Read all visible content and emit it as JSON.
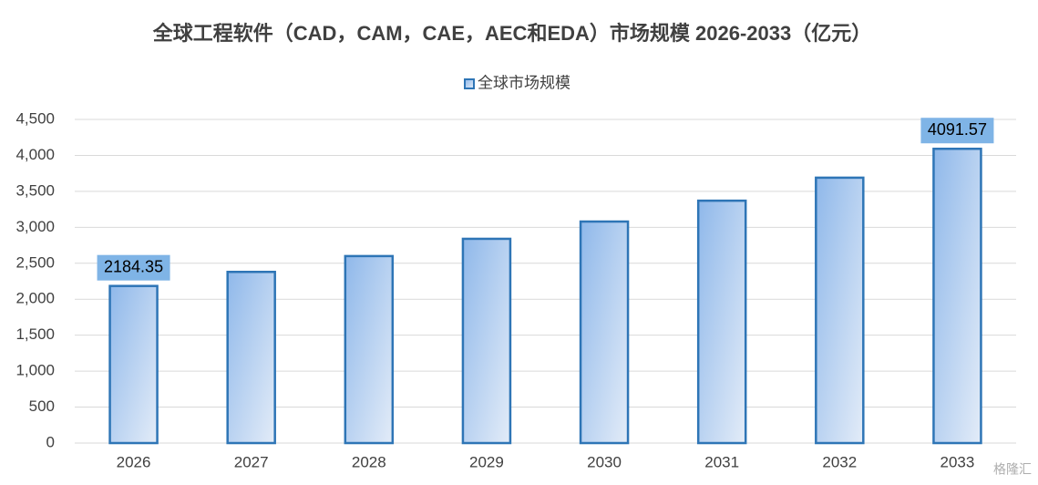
{
  "chart_data": {
    "type": "bar",
    "title": "全球工程软件（CAD，CAM，CAE，AEC和EDA）市场规模 2026-2033（亿元）",
    "categories": [
      "2026",
      "2027",
      "2028",
      "2029",
      "2030",
      "2031",
      "2032",
      "2033"
    ],
    "series": [
      {
        "name": "全球市场规模",
        "color": "#2e75b6",
        "values": [
          2184.35,
          2380,
          2600,
          2840,
          3080,
          3370,
          3690,
          4091.57
        ],
        "value_labels": [
          "2184.35",
          null,
          null,
          null,
          null,
          null,
          null,
          "4091.57"
        ]
      }
    ],
    "ylim": [
      0,
      4500
    ],
    "yticks": [
      0,
      500,
      {
        "value": 1000,
        "label": "1,000"
      },
      {
        "value": 1500,
        "label": "1,500"
      },
      {
        "value": 2000,
        "label": "2,000"
      },
      {
        "value": 2500,
        "label": "2,500"
      },
      {
        "value": 3000,
        "label": "3,000"
      },
      {
        "value": 3500,
        "label": "3,500"
      },
      {
        "value": 4000,
        "label": "4,000"
      },
      {
        "value": 4500,
        "label": "4,500"
      }
    ],
    "grid": true,
    "legend": "top",
    "watermark": "格隆汇"
  }
}
